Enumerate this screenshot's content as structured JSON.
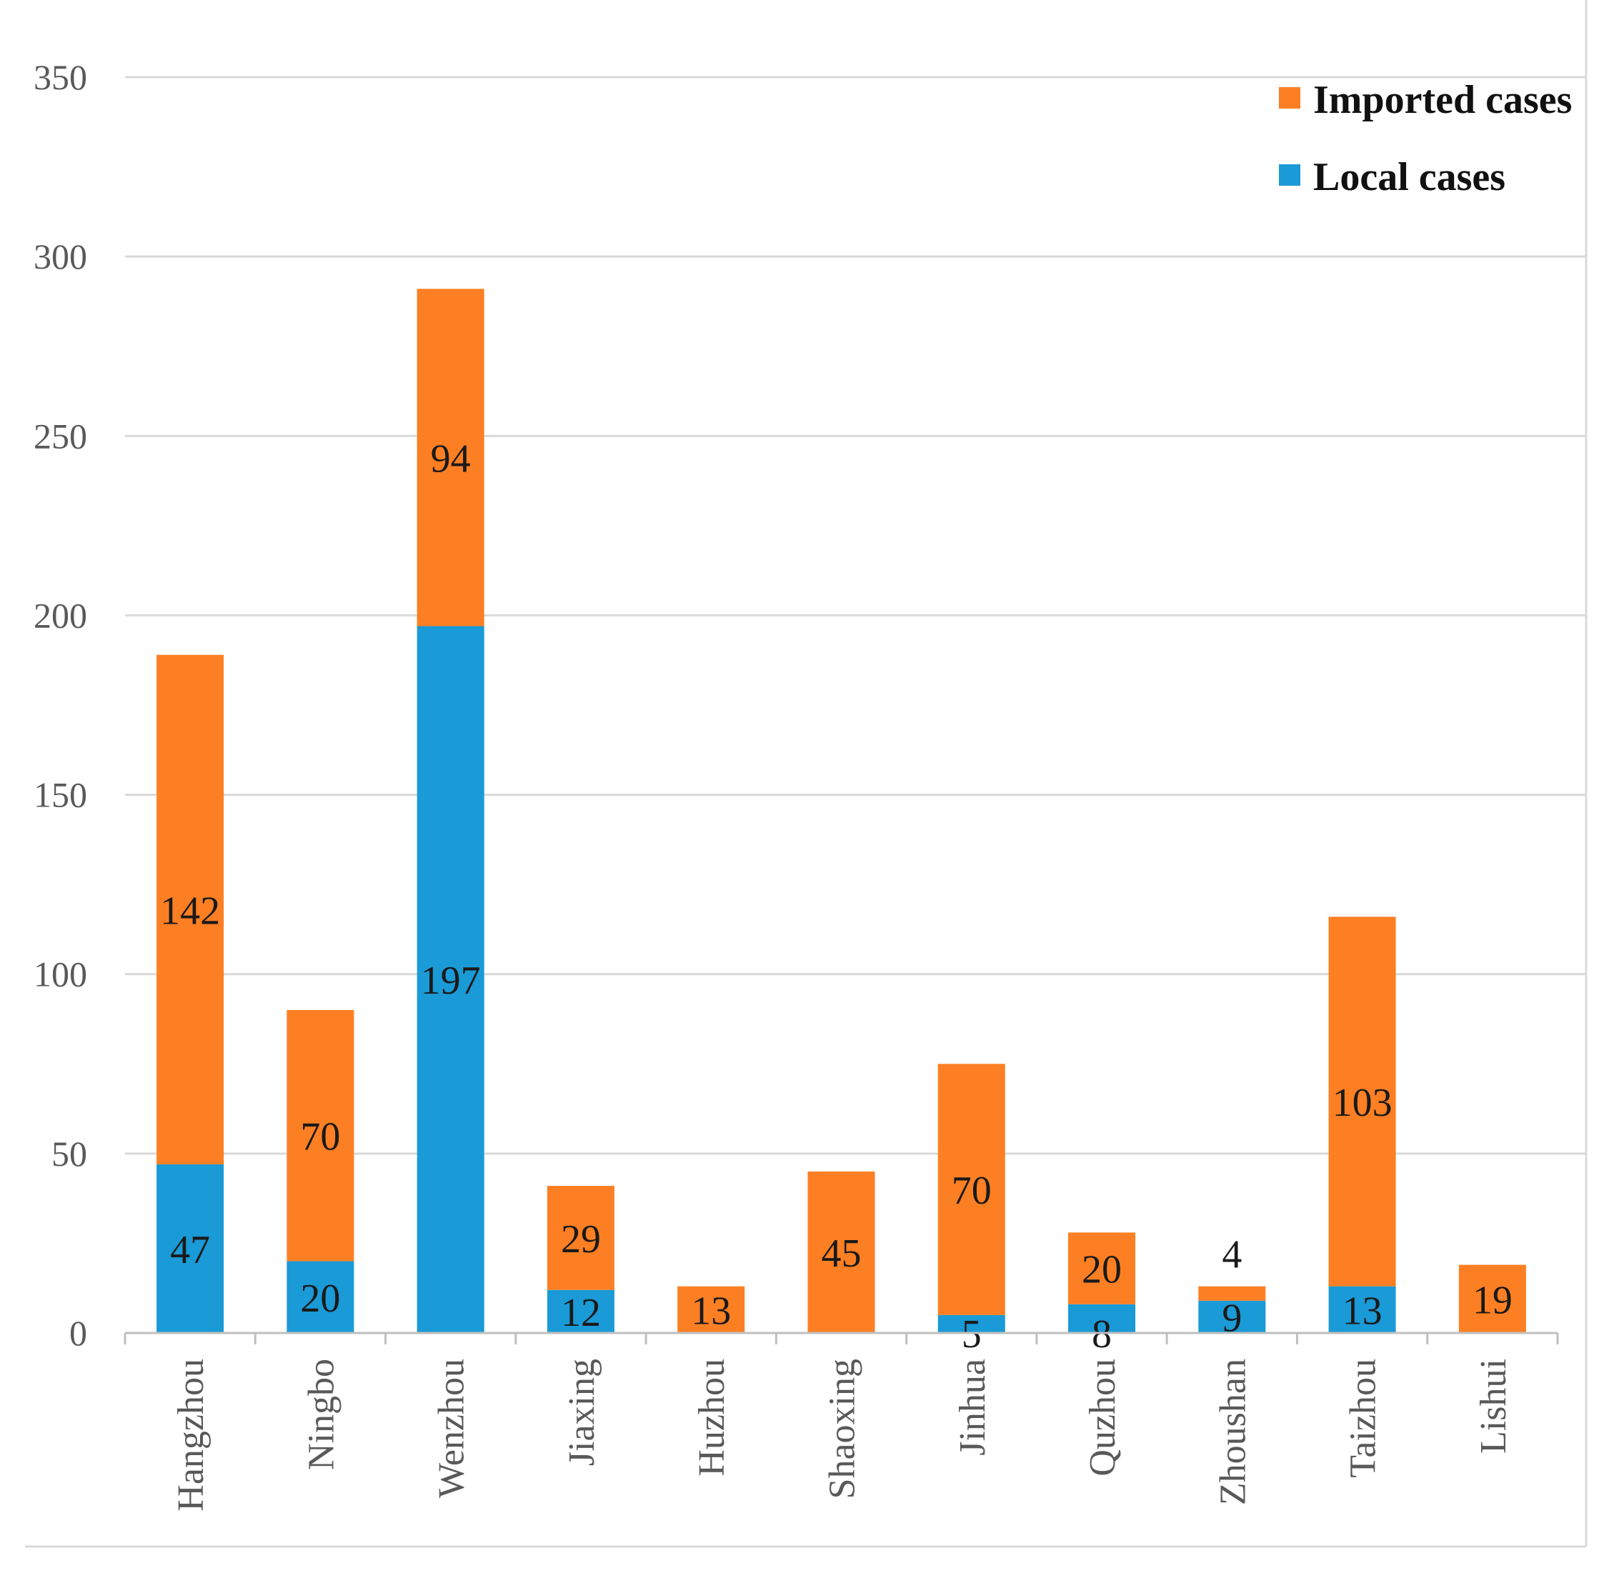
{
  "chart_data": {
    "type": "bar",
    "stacked": true,
    "title": "",
    "xlabel": "",
    "ylabel": "",
    "ylim": [
      0,
      350
    ],
    "yticks": [
      0,
      50,
      100,
      150,
      200,
      250,
      300,
      350
    ],
    "grid": true,
    "legend_position": "top-right",
    "categories": [
      "Hangzhou",
      "Ningbo",
      "Wenzhou",
      "Jiaxing",
      "Huzhou",
      "Shaoxing",
      "Jinhua",
      "Quzhou",
      "Zhoushan",
      "Taizhou",
      "Lishui"
    ],
    "series": [
      {
        "name": "Local cases",
        "color": "#1a9ad6",
        "values": [
          47,
          20,
          197,
          12,
          0,
          0,
          5,
          8,
          9,
          13,
          0
        ],
        "labels": [
          "47",
          "20",
          "197",
          "12",
          "",
          "",
          "5",
          "8",
          "9",
          "13",
          ""
        ]
      },
      {
        "name": "Imported cases",
        "color": "#fd7f23",
        "values": [
          142,
          70,
          94,
          29,
          13,
          45,
          70,
          20,
          4,
          103,
          19
        ],
        "labels": [
          "142",
          "70",
          "94",
          "29",
          "13",
          "45",
          "70",
          "20",
          "4",
          "103",
          "19"
        ]
      }
    ],
    "legend": [
      "Imported cases",
      "Local cases"
    ]
  }
}
